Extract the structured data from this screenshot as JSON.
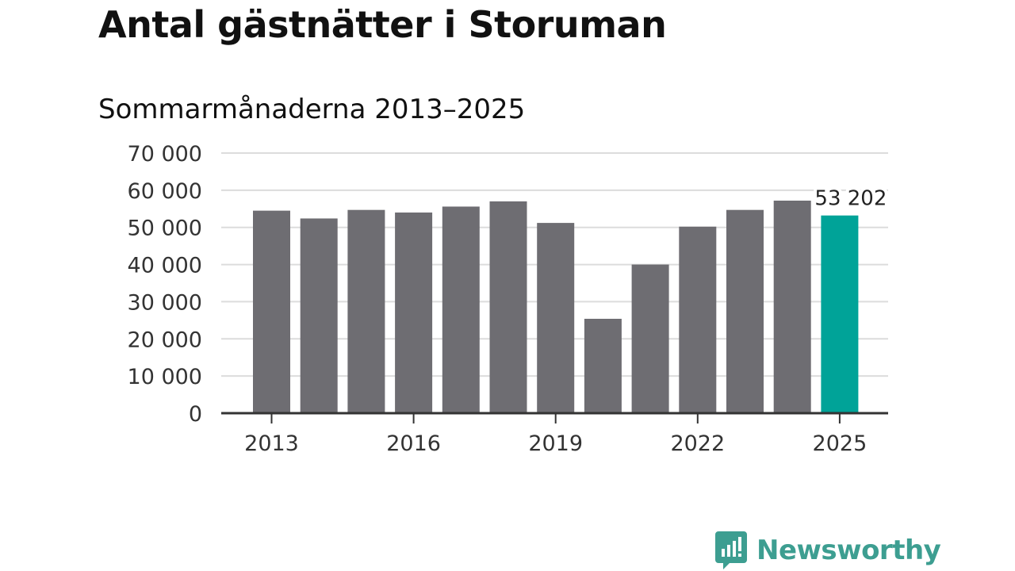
{
  "chart_data": {
    "type": "bar",
    "title": "Antal gästnätter i Storuman",
    "subtitle": "Sommarmånaderna 2013–2025",
    "categories": [
      "2013",
      "2014",
      "2015",
      "2016",
      "2017",
      "2018",
      "2019",
      "2020",
      "2021",
      "2022",
      "2023",
      "2024",
      "2025"
    ],
    "values": [
      54500,
      52400,
      54700,
      54000,
      55600,
      57000,
      51200,
      25400,
      40000,
      50200,
      54700,
      57200,
      53202
    ],
    "highlight_index": 12,
    "highlight_label": "53 202",
    "ylim": [
      0,
      70000
    ],
    "yticks": [
      0,
      10000,
      20000,
      30000,
      40000,
      50000,
      60000,
      70000
    ],
    "ytick_labels": [
      "0",
      "10 000",
      "20 000",
      "30 000",
      "40 000",
      "50 000",
      "60 000",
      "70 000"
    ],
    "xtick_labels": [
      "2013",
      "2016",
      "2019",
      "2022",
      "2025"
    ],
    "xlabel": "",
    "ylabel": "",
    "grid": true,
    "colors": {
      "bar": "#6e6d72",
      "highlight": "#00a398",
      "grid": "#dcdcdc",
      "axis": "#333333",
      "text": "#333333"
    }
  },
  "brand": {
    "name": "Newsworthy",
    "icon": "newsworthy-logo-icon",
    "color": "#3d9e91"
  }
}
